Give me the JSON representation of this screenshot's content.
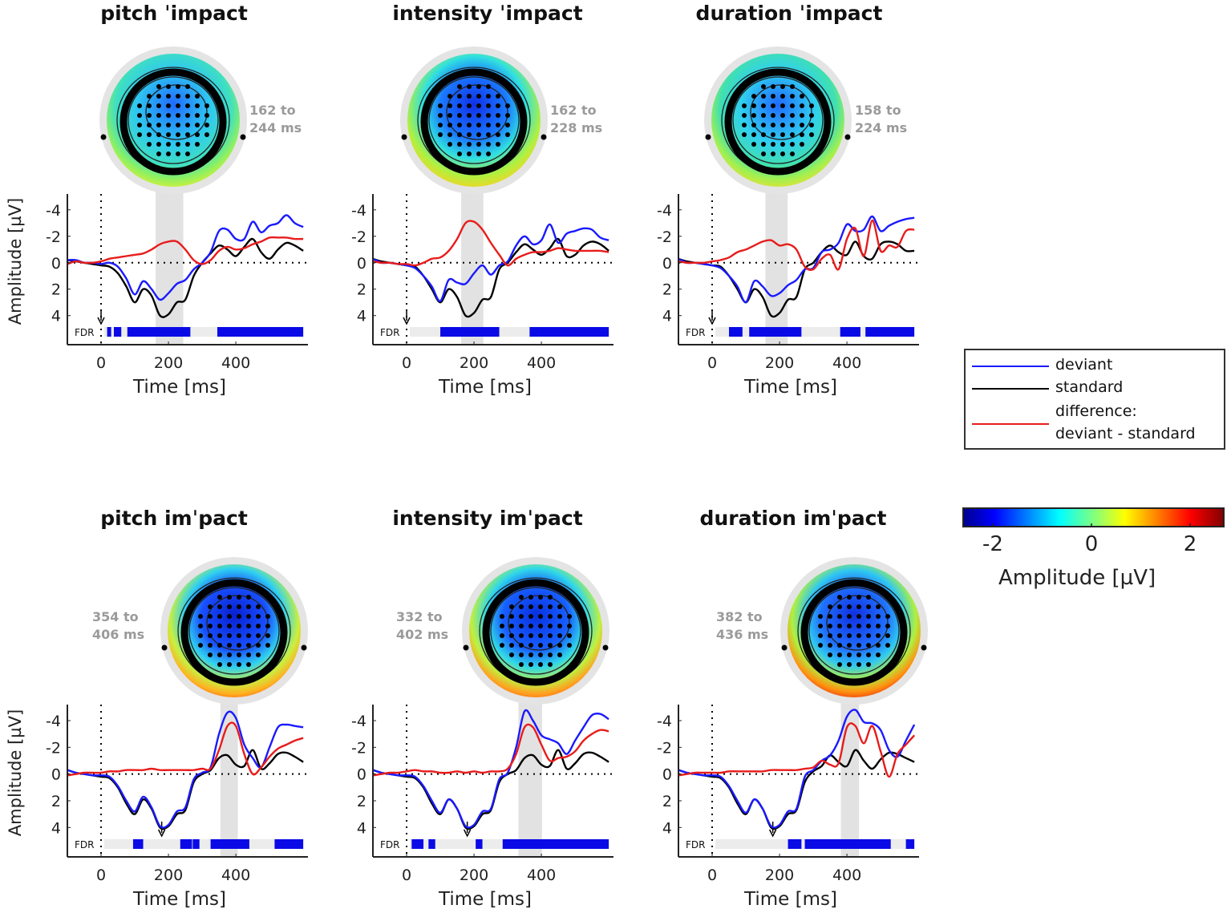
{
  "chart_data": [
    {
      "type": "line",
      "title": "pitch ˈimpact",
      "window_label": [
        "162 to",
        "244 ms"
      ],
      "window": [
        162,
        244
      ],
      "arrow_ms": 0,
      "fdr_label": "FDR",
      "fdr_segments": [
        [
          18,
          30
        ],
        [
          38,
          60
        ],
        [
          78,
          265
        ],
        [
          345,
          600
        ]
      ],
      "xlabel": "Time [ms]",
      "ylabel": "Amplitude [µV]",
      "xticks": [
        0,
        200,
        400
      ],
      "yticks": [
        -4,
        -2,
        0,
        2,
        4
      ],
      "xlim": [
        -100,
        614
      ],
      "ylim": [
        -5.2,
        6.2
      ],
      "t_start": -100,
      "t_step": 25,
      "series": [
        {
          "name": "deviant",
          "values": [
            -0.2,
            -0.2,
            0,
            0,
            0.1,
            0,
            0.3,
            1.2,
            2.4,
            1.4,
            2.0,
            2.8,
            2.3,
            1.6,
            1.3,
            0.5,
            0,
            -0.8,
            -2.4,
            -2.5,
            -1.8,
            -1.8,
            -3.1,
            -2.3,
            -2.8,
            -3.0,
            -3.6,
            -3.0,
            -2.7
          ]
        },
        {
          "name": "standard",
          "values": [
            -0.2,
            -0.1,
            0,
            0.1,
            0.2,
            0.3,
            0.8,
            1.8,
            3.0,
            2.0,
            2.5,
            4.0,
            3.9,
            3.0,
            2.8,
            1.0,
            0,
            -0.7,
            -1.3,
            -1.0,
            -0.5,
            -1.2,
            -1.8,
            -0.8,
            -0.3,
            -1.0,
            -1.5,
            -1.3,
            -0.9
          ]
        },
        {
          "name": "difference",
          "values": [
            0.1,
            -0.1,
            0,
            0,
            -0.1,
            -0.3,
            -0.4,
            -0.5,
            -0.6,
            -0.7,
            -1.0,
            -1.4,
            -1.6,
            -1.6,
            -1.0,
            -0.2,
            0.1,
            -0.2,
            -0.9,
            -1.2,
            -1.0,
            -1.1,
            -1.4,
            -1.6,
            -1.9,
            -1.9,
            -1.9,
            -1.8,
            -1.8
          ]
        }
      ]
    },
    {
      "type": "line",
      "title": "intensity ˈimpact",
      "window_label": [
        "162 to",
        "228 ms"
      ],
      "window": [
        162,
        228
      ],
      "arrow_ms": 0,
      "fdr_label": "FDR",
      "fdr_segments": [
        [
          100,
          275
        ],
        [
          365,
          600
        ]
      ],
      "xlabel": "Time [ms]",
      "ylabel": "Amplitude [µV]",
      "xticks": [
        0,
        200,
        400
      ],
      "yticks": [
        -4,
        -2,
        0,
        2,
        4
      ],
      "xlim": [
        -100,
        614
      ],
      "ylim": [
        -5.2,
        6.2
      ],
      "t_start": -100,
      "t_step": 25,
      "series": [
        {
          "name": "deviant",
          "values": [
            -0.3,
            0,
            0,
            0.1,
            0.2,
            0.4,
            1.0,
            1.8,
            2.9,
            1.3,
            1.5,
            1.6,
            0.8,
            0.2,
            0.9,
            0.2,
            -0.1,
            -1.3,
            -2.0,
            -1.4,
            -1.7,
            -2.9,
            -1.5,
            -2.2,
            -2.4,
            -2.6,
            -2.5,
            -1.9,
            -1.7
          ]
        },
        {
          "name": "standard",
          "values": [
            -0.3,
            -0.1,
            0,
            0.1,
            0.2,
            0.3,
            1.0,
            2.0,
            3.0,
            2.0,
            2.6,
            4.0,
            3.8,
            2.8,
            2.6,
            0.5,
            0,
            -0.8,
            -1.4,
            -1.0,
            -0.6,
            -1.1,
            -1.8,
            -0.5,
            -0.6,
            -1.3,
            -1.6,
            -1.4,
            -0.9
          ]
        },
        {
          "name": "difference",
          "values": [
            -0.1,
            0,
            0,
            0.1,
            0.1,
            0.2,
            0,
            -0.3,
            -0.4,
            -0.9,
            -1.8,
            -3.0,
            -3.1,
            -2.5,
            -1.5,
            -0.6,
            0.2,
            -0.3,
            -0.6,
            -0.8,
            -0.8,
            -0.9,
            -1.1,
            -1.0,
            -0.9,
            -0.9,
            -0.9,
            -0.9,
            -0.8
          ]
        }
      ]
    },
    {
      "type": "line",
      "title": "duration ˈimpact",
      "window_label": [
        "158 to",
        "224 ms"
      ],
      "window": [
        158,
        224
      ],
      "arrow_ms": 0,
      "fdr_label": "FDR",
      "fdr_segments": [
        [
          50,
          90
        ],
        [
          110,
          265
        ],
        [
          380,
          440
        ],
        [
          455,
          600
        ]
      ],
      "xlabel": "Time [ms]",
      "ylabel": "Amplitude [µV]",
      "xticks": [
        0,
        200,
        400
      ],
      "yticks": [
        -4,
        -2,
        0,
        2,
        4
      ],
      "xlim": [
        -100,
        614
      ],
      "ylim": [
        -5.2,
        6.2
      ],
      "t_start": -100,
      "t_step": 25,
      "series": [
        {
          "name": "deviant",
          "values": [
            -0.3,
            0,
            0,
            0.1,
            0.2,
            0.4,
            1.0,
            1.8,
            3.0,
            1.4,
            1.8,
            2.5,
            2.3,
            1.7,
            1.3,
            0.5,
            0.4,
            -0.8,
            -1.0,
            -1.5,
            -2.9,
            -2.4,
            -2.5,
            -3.5,
            -2.4,
            -2.8,
            -3.1,
            -3.3,
            -3.4
          ]
        },
        {
          "name": "standard",
          "values": [
            -0.3,
            -0.1,
            0,
            0.1,
            0.2,
            0.3,
            1.0,
            2.0,
            3.0,
            2.0,
            2.6,
            4.0,
            3.8,
            2.8,
            2.6,
            0.5,
            0,
            -0.8,
            -1.3,
            -0.8,
            -0.6,
            -1.6,
            -0.5,
            -0.3,
            -1.4,
            -1.6,
            -1.4,
            -0.9,
            -0.9
          ]
        },
        {
          "name": "difference",
          "values": [
            -0.1,
            0,
            0,
            0,
            -0.1,
            -0.2,
            -0.4,
            -0.8,
            -1.0,
            -1.3,
            -1.6,
            -1.7,
            -1.3,
            -1.4,
            -1.0,
            0.3,
            0.5,
            -0.3,
            -0.6,
            0.5,
            -1.8,
            -2.6,
            -0.5,
            -3.2,
            -0.9,
            -1.3,
            -1.2,
            -2.4,
            -2.5
          ]
        }
      ]
    },
    {
      "type": "line",
      "title": "pitch imˈpact",
      "window_label": [
        "354 to",
        "406 ms"
      ],
      "window": [
        354,
        406
      ],
      "arrow_ms": 180,
      "fdr_label": "FDR",
      "fdr_segments": [
        [
          95,
          125
        ],
        [
          235,
          270
        ],
        [
          272,
          292
        ],
        [
          325,
          440
        ],
        [
          515,
          600
        ]
      ],
      "xlabel": "Time [ms]",
      "ylabel": "Amplitude [µV]",
      "xticks": [
        0,
        200,
        400
      ],
      "yticks": [
        -4,
        -2,
        0,
        2,
        4
      ],
      "xlim": [
        -100,
        614
      ],
      "ylim": [
        -5.2,
        6.2
      ],
      "t_start": -100,
      "t_step": 25,
      "series": [
        {
          "name": "deviant",
          "values": [
            -0.3,
            -0.1,
            0,
            0.1,
            0.1,
            0.2,
            0.9,
            2.0,
            2.8,
            1.7,
            2.5,
            3.9,
            3.8,
            2.8,
            2.5,
            0.4,
            -0.1,
            -0.5,
            -3.0,
            -4.6,
            -4.2,
            -2.2,
            -1.2,
            -0.5,
            -2.0,
            -3.5,
            -3.7,
            -3.6,
            -3.5
          ]
        },
        {
          "name": "standard",
          "values": [
            -0.3,
            -0.1,
            0,
            0.1,
            0.2,
            0.3,
            1.0,
            2.2,
            3.0,
            1.9,
            2.6,
            4.0,
            3.9,
            3.0,
            2.7,
            0.6,
            0,
            -0.3,
            -1.2,
            -1.4,
            -0.7,
            -0.6,
            -1.8,
            -0.4,
            -0.8,
            -1.5,
            -1.6,
            -1.3,
            -0.9
          ]
        },
        {
          "name": "difference",
          "values": [
            0.1,
            0,
            -0.1,
            -0.1,
            -0.1,
            -0.2,
            -0.2,
            -0.3,
            -0.3,
            -0.3,
            -0.4,
            -0.3,
            -0.3,
            -0.3,
            -0.3,
            -0.3,
            -0.4,
            -0.4,
            -1.8,
            -3.6,
            -3.6,
            -1.5,
            0,
            -0.5,
            -1.3,
            -1.9,
            -2.2,
            -2.5,
            -2.7
          ]
        }
      ]
    },
    {
      "type": "line",
      "title": "intensity imˈpact",
      "window_label": [
        "332 to",
        "402 ms"
      ],
      "window": [
        332,
        402
      ],
      "arrow_ms": 180,
      "fdr_label": "FDR",
      "fdr_segments": [
        [
          15,
          50
        ],
        [
          65,
          85
        ],
        [
          205,
          225
        ],
        [
          285,
          600
        ]
      ],
      "xlabel": "Time [ms]",
      "ylabel": "Amplitude [µV]",
      "xticks": [
        0,
        200,
        400
      ],
      "yticks": [
        -4,
        -2,
        0,
        2,
        4
      ],
      "xlim": [
        -100,
        614
      ],
      "ylim": [
        -5.2,
        6.2
      ],
      "t_start": -100,
      "t_step": 25,
      "series": [
        {
          "name": "deviant",
          "values": [
            -0.3,
            -0.1,
            0,
            0.1,
            0.1,
            0.2,
            0.9,
            2.0,
            2.9,
            1.9,
            2.6,
            3.9,
            3.8,
            2.8,
            2.6,
            0.4,
            -0.1,
            -2.0,
            -4.7,
            -4.0,
            -2.9,
            -2.6,
            -2.3,
            -1.5,
            -2.5,
            -3.5,
            -4.4,
            -4.5,
            -4.1
          ]
        },
        {
          "name": "standard",
          "values": [
            -0.3,
            -0.1,
            0,
            0.1,
            0.2,
            0.3,
            1.0,
            2.2,
            3.0,
            1.9,
            2.6,
            4.0,
            3.9,
            3.0,
            2.7,
            0.6,
            0,
            -0.3,
            -1.2,
            -1.4,
            -0.7,
            -0.6,
            -1.8,
            -0.4,
            -0.8,
            -1.5,
            -1.6,
            -1.3,
            -0.9
          ]
        },
        {
          "name": "difference",
          "values": [
            0.1,
            0,
            -0.1,
            -0.1,
            -0.2,
            -0.3,
            -0.2,
            -0.2,
            -0.1,
            -0.1,
            -0.2,
            -0.1,
            -0.2,
            -0.1,
            -0.2,
            -0.2,
            -0.4,
            -1.5,
            -3.5,
            -3.5,
            -2.2,
            -1.0,
            -1.2,
            -1.3,
            -1.7,
            -2.5,
            -3.0,
            -3.3,
            -3.2
          ]
        }
      ]
    },
    {
      "type": "line",
      "title": "duration imˈpact",
      "window_label": [
        "382 to",
        "436 ms"
      ],
      "window": [
        382,
        436
      ],
      "arrow_ms": 180,
      "fdr_label": "FDR",
      "fdr_segments": [
        [
          225,
          265
        ],
        [
          275,
          530
        ],
        [
          575,
          600
        ]
      ],
      "xlabel": "Time [ms]",
      "ylabel": "Amplitude [µV]",
      "xticks": [
        0,
        200,
        400
      ],
      "yticks": [
        -4,
        -2,
        0,
        2,
        4
      ],
      "xlim": [
        -100,
        614
      ],
      "ylim": [
        -5.2,
        6.2
      ],
      "t_start": -100,
      "t_step": 25,
      "series": [
        {
          "name": "deviant",
          "values": [
            -0.3,
            -0.1,
            0,
            0.1,
            0.1,
            0.2,
            0.9,
            2.0,
            2.9,
            1.9,
            2.6,
            3.9,
            3.8,
            2.8,
            2.6,
            0.2,
            -0.3,
            -1.0,
            -1.4,
            -2.5,
            -4.3,
            -4.8,
            -3.9,
            -3.8,
            -3.3,
            -1.8,
            -1.3,
            -2.5,
            -3.7
          ]
        },
        {
          "name": "standard",
          "values": [
            -0.3,
            -0.1,
            0,
            0.1,
            0.2,
            0.3,
            1.0,
            2.2,
            3.0,
            1.9,
            2.6,
            4.0,
            3.9,
            3.0,
            2.7,
            0.6,
            -0.2,
            -0.6,
            -1.4,
            -0.9,
            -0.6,
            -1.8,
            -1.0,
            -0.4,
            -1.1,
            -1.6,
            -1.5,
            -1.2,
            -0.9
          ]
        },
        {
          "name": "difference",
          "values": [
            0.1,
            0,
            -0.1,
            -0.1,
            -0.1,
            -0.1,
            -0.2,
            -0.2,
            -0.2,
            -0.2,
            -0.2,
            -0.3,
            -0.3,
            -0.3,
            -0.3,
            -0.4,
            -0.5,
            -1.0,
            -0.7,
            -0.8,
            -3.5,
            -3.6,
            -2.3,
            -3.6,
            -1.7,
            0.2,
            -1.5,
            -2.2,
            -2.9
          ]
        }
      ]
    }
  ],
  "legend": {
    "items": [
      {
        "label": "deviant",
        "color": "#1a1aff"
      },
      {
        "label": "standard",
        "color": "#000000"
      },
      {
        "label": "difference:",
        "label2": "deviant - standard",
        "color": "#e81c1c"
      }
    ]
  },
  "colorbar": {
    "label": "Amplitude [µV]",
    "ticks": [
      "-2",
      "0",
      "2"
    ],
    "range": [
      -2.6,
      2.7
    ]
  }
}
